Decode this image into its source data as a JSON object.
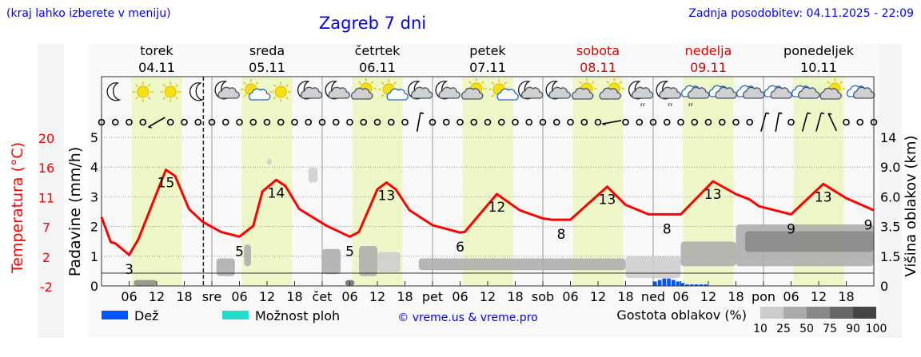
{
  "header": {
    "hint": "(kraj lahko izberete v meniju)",
    "title": "Zagreb 7 dni",
    "updated": "Zadnja posodobitev: 04.11.2025 - 22:09"
  },
  "days": [
    {
      "name": "torek",
      "date": "04.11",
      "weekend": false
    },
    {
      "name": "sreda",
      "date": "05.11",
      "weekend": false
    },
    {
      "name": "četrtek",
      "date": "06.11",
      "weekend": false
    },
    {
      "name": "petek",
      "date": "07.11",
      "weekend": false
    },
    {
      "name": "sobota",
      "date": "08.11",
      "weekend": true
    },
    {
      "name": "nedelja",
      "date": "09.11",
      "weekend": true
    },
    {
      "name": "ponedeljek",
      "date": "10.11",
      "weekend": false
    }
  ],
  "x_ticks": [
    "06",
    "12",
    "18",
    "sre",
    "06",
    "12",
    "18",
    "čet",
    "06",
    "12",
    "18",
    "pet",
    "06",
    "12",
    "18",
    "sob",
    "06",
    "12",
    "18",
    "ned",
    "06",
    "12",
    "18",
    "pon",
    "06",
    "12",
    "18"
  ],
  "icons": [
    "moon",
    "sun",
    "sun",
    "moon",
    "moon-cloud",
    "sun-cloud",
    "sun",
    "moon-cloud",
    "moon-cloud",
    "cloud-sun",
    "sun-cloud",
    "moon-cloud",
    "moon-cloud",
    "cloud-sun",
    "sun-cloud",
    "moon-cloud",
    "moon-cloud",
    "cloud-sun",
    "cloud-sun",
    "moon-cloud-drizzle",
    "moon-cloud-drizzle",
    "cloud-drizzle",
    "cloud",
    "cloud",
    "cloud",
    "cloud",
    "cloud-sun",
    "cloud"
  ],
  "wind_barbs": [
    {
      "t": "2025-11-04T12:00",
      "dir": 240
    },
    {
      "t": "2025-11-06T21:00",
      "dir": 10
    },
    {
      "t": "2025-11-08T15:00",
      "dir": 260
    },
    {
      "t": "2025-11-10T00:00",
      "dir": 15
    },
    {
      "t": "2025-11-10T03:00",
      "dir": 10
    },
    {
      "t": "2025-11-10T09:00",
      "dir": 15
    },
    {
      "t": "2025-11-10T12:00",
      "dir": 15
    },
    {
      "t": "2025-11-10T15:00",
      "dir": -25
    }
  ],
  "current_time": "2025-11-04T22:09",
  "chart_data": {
    "type": "line",
    "start": "2025-11-04T00:00",
    "end": "2025-11-11T00:00",
    "left_axis_temp": {
      "label": "Temperatura (°C)",
      "ticks": [
        20,
        16,
        11,
        7,
        2,
        -2
      ],
      "range": [
        -2,
        20
      ],
      "color": "#ff0000"
    },
    "left_axis_precip": {
      "label": "Padavine (mm/h)",
      "ticks": [
        5,
        4,
        3,
        2,
        1,
        0
      ],
      "range": [
        0,
        5
      ]
    },
    "right_axis_height": {
      "label": "Višina oblakov (km)",
      "ticks": [
        14,
        "9.0",
        "6.0",
        "3.5",
        "1.5",
        0
      ]
    },
    "grid": true,
    "daylight_shading": true,
    "temperature": [
      [
        "2025-11-04T00:00",
        8.2
      ],
      [
        "2025-11-04T02:00",
        4.5
      ],
      [
        "2025-11-04T03:00",
        4.3
      ],
      [
        "2025-11-04T06:00",
        2.6
      ],
      [
        "2025-11-04T08:00",
        4.9
      ],
      [
        "2025-11-04T14:00",
        15.2
      ],
      [
        "2025-11-04T16:00",
        14.3
      ],
      [
        "2025-11-04T19:00",
        9.4
      ],
      [
        "2025-11-04T22:00",
        7.5
      ],
      [
        "2025-11-05T02:00",
        6.0
      ],
      [
        "2025-11-05T06:00",
        5.3
      ],
      [
        "2025-11-05T09:00",
        6.9
      ],
      [
        "2025-11-05T11:00",
        12.0
      ],
      [
        "2025-11-05T14:00",
        13.7
      ],
      [
        "2025-11-05T16:00",
        12.8
      ],
      [
        "2025-11-05T19:00",
        9.4
      ],
      [
        "2025-11-06T01:00",
        6.9
      ],
      [
        "2025-11-06T06:00",
        5.3
      ],
      [
        "2025-11-06T08:00",
        6.0
      ],
      [
        "2025-11-06T12:00",
        12.3
      ],
      [
        "2025-11-06T14:00",
        13.3
      ],
      [
        "2025-11-06T16:00",
        12.3
      ],
      [
        "2025-11-06T19:00",
        9.2
      ],
      [
        "2025-11-07T00:00",
        7.0
      ],
      [
        "2025-11-07T06:00",
        5.9
      ],
      [
        "2025-11-07T07:00",
        6.0
      ],
      [
        "2025-11-07T14:00",
        11.6
      ],
      [
        "2025-11-07T19:00",
        9.2
      ],
      [
        "2025-11-08T00:00",
        8.0
      ],
      [
        "2025-11-08T02:00",
        7.8
      ],
      [
        "2025-11-08T06:00",
        7.8
      ],
      [
        "2025-11-08T14:00",
        12.7
      ],
      [
        "2025-11-08T18:00",
        10.0
      ],
      [
        "2025-11-08T23:00",
        8.6
      ],
      [
        "2025-11-09T06:00",
        8.6
      ],
      [
        "2025-11-09T13:00",
        13.5
      ],
      [
        "2025-11-09T18:00",
        11.6
      ],
      [
        "2025-11-09T21:00",
        10.8
      ],
      [
        "2025-11-09T23:00",
        9.8
      ],
      [
        "2025-11-10T06:00",
        8.6
      ],
      [
        "2025-11-10T13:00",
        13.1
      ],
      [
        "2025-11-10T18:00",
        11.0
      ],
      [
        "2025-11-11T00:00",
        9.2
      ]
    ],
    "temp_labels": [
      {
        "t": "2025-11-04T06:00",
        "value": "3",
        "kind": "min"
      },
      {
        "t": "2025-11-04T14:00",
        "value": "15",
        "kind": "max"
      },
      {
        "t": "2025-11-05T06:00",
        "value": "5",
        "kind": "min"
      },
      {
        "t": "2025-11-05T14:00",
        "value": "14",
        "kind": "max"
      },
      {
        "t": "2025-11-06T06:00",
        "value": "5",
        "kind": "min"
      },
      {
        "t": "2025-11-06T14:00",
        "value": "13",
        "kind": "max"
      },
      {
        "t": "2025-11-07T06:00",
        "value": "6",
        "kind": "min"
      },
      {
        "t": "2025-11-07T14:00",
        "value": "12",
        "kind": "max"
      },
      {
        "t": "2025-11-08T04:00",
        "value": "8",
        "kind": "min"
      },
      {
        "t": "2025-11-08T14:00",
        "value": "13",
        "kind": "max"
      },
      {
        "t": "2025-11-09T03:00",
        "value": "8",
        "kind": "min"
      },
      {
        "t": "2025-11-09T13:00",
        "value": "13",
        "kind": "max"
      },
      {
        "t": "2025-11-10T06:00",
        "value": "9",
        "kind": "min"
      },
      {
        "t": "2025-11-10T13:00",
        "value": "13",
        "kind": "max"
      },
      {
        "t": "2025-11-11T00:00",
        "value": "9",
        "kind": "min"
      }
    ],
    "precipitation_rain": [
      [
        "2025-11-09T00:00",
        0.15
      ],
      [
        "2025-11-09T01:00",
        0.2
      ],
      [
        "2025-11-09T02:00",
        0.25
      ],
      [
        "2025-11-09T03:00",
        0.25
      ],
      [
        "2025-11-09T04:00",
        0.2
      ],
      [
        "2025-11-09T05:00",
        0.15
      ],
      [
        "2025-11-09T06:00",
        0.1
      ],
      [
        "2025-11-09T07:00",
        0.05
      ],
      [
        "2025-11-09T08:00",
        0.05
      ],
      [
        "2025-11-09T09:00",
        0.05
      ],
      [
        "2025-11-09T10:00",
        0.05
      ],
      [
        "2025-11-09T11:00",
        0.05
      ]
    ],
    "cloud_layers": [
      {
        "from": "2025-11-04T07:00",
        "to": "2025-11-04T12:00",
        "base_km": 0,
        "top_km": 0.3,
        "density": 75
      },
      {
        "from": "2025-11-05T01:00",
        "to": "2025-11-05T05:00",
        "base_km": 0.5,
        "top_km": 1.4,
        "density": 50
      },
      {
        "from": "2025-11-05T07:00",
        "to": "2025-11-05T08:30",
        "base_km": 1.0,
        "top_km": 2.3,
        "density": 50
      },
      {
        "from": "2025-11-05T12:00",
        "to": "2025-11-05T13:00",
        "base_km": 9.5,
        "top_km": 10.5,
        "density": 25
      },
      {
        "from": "2025-11-05T21:00",
        "to": "2025-11-05T23:00",
        "base_km": 7.5,
        "top_km": 9.0,
        "density": 25
      },
      {
        "from": "2025-11-06T00:00",
        "to": "2025-11-06T04:00",
        "base_km": 0.6,
        "top_km": 2.0,
        "density": 50
      },
      {
        "from": "2025-11-06T05:00",
        "to": "2025-11-06T07:00",
        "base_km": 0,
        "top_km": 0.3,
        "density": 90
      },
      {
        "from": "2025-11-06T08:00",
        "to": "2025-11-06T12:00",
        "base_km": 0.5,
        "top_km": 2.2,
        "density": 60
      },
      {
        "from": "2025-11-06T12:00",
        "to": "2025-11-06T17:00",
        "base_km": 0.7,
        "top_km": 1.8,
        "density": 25
      },
      {
        "from": "2025-11-06T21:00",
        "to": "2025-11-08T18:00",
        "base_km": 0.8,
        "top_km": 1.4,
        "density": 50
      },
      {
        "from": "2025-11-08T18:00",
        "to": "2025-11-09T06:00",
        "base_km": 0.4,
        "top_km": 1.5,
        "density": 40
      },
      {
        "from": "2025-11-09T06:00",
        "to": "2025-11-09T18:00",
        "base_km": 1.0,
        "top_km": 2.5,
        "density": 60
      },
      {
        "from": "2025-11-09T18:00",
        "to": "2025-11-11T00:00",
        "base_km": 1.0,
        "top_km": 3.7,
        "density": 50
      },
      {
        "from": "2025-11-09T20:00",
        "to": "2025-11-11T00:00",
        "base_km": 1.8,
        "top_km": 3.2,
        "density": 80
      }
    ]
  },
  "legend": {
    "rain_label": "Dež",
    "rain_color": "#0055ff",
    "showers_label": "Možnost ploh",
    "showers_color": "#22ddcc",
    "copyright": "© vreme.us & vreme.pro",
    "density_label": "Gostota oblakov (%)",
    "density_scale": [
      "10",
      "25",
      "50",
      "75",
      "90",
      "100"
    ],
    "density_colors": [
      "#e6e6e6",
      "#cccccc",
      "#aaaaaa",
      "#888888",
      "#666666",
      "#444444"
    ]
  },
  "colors": {
    "title": "#0000ff",
    "weekend": "#dd0000",
    "temperature": "#ff0000",
    "daylight": "#eef7c8"
  }
}
